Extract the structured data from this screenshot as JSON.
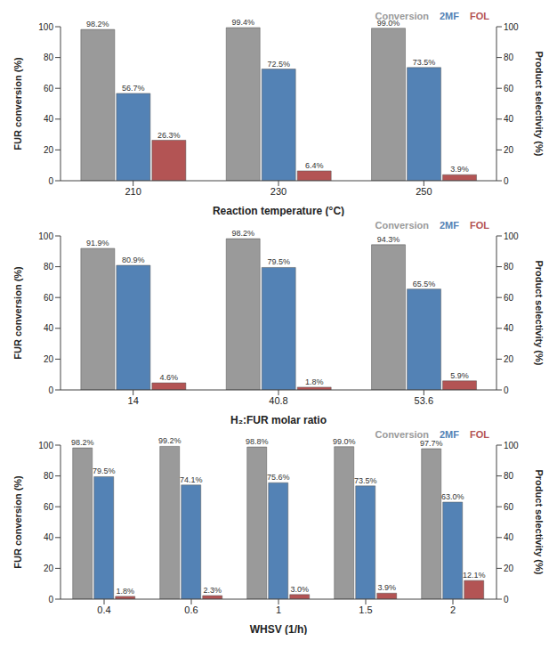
{
  "chart_data": [
    {
      "type": "bar",
      "xlabel": "Reaction temperature (°C)",
      "ylabel": "FUR conversion (%)",
      "y2label": "Product selectivity (%)",
      "categories": [
        "210",
        "230",
        "250"
      ],
      "series": [
        {
          "name": "Conversion",
          "color": "#9a9a9a",
          "values": [
            98.2,
            99.4,
            99.0
          ],
          "value_labels": [
            "98.2%",
            "99.4%",
            "99.0%"
          ]
        },
        {
          "name": "2MF",
          "color": "#5382b5",
          "axis": "y2",
          "values": [
            56.7,
            72.5,
            73.5
          ],
          "value_labels": [
            "56.7%",
            "72.5%",
            "73.5%"
          ]
        },
        {
          "name": "FOL",
          "color": "#b35454",
          "axis": "y2",
          "values": [
            26.3,
            6.4,
            3.9
          ],
          "value_labels": [
            "26.3%",
            "6.4%",
            "3.9%"
          ]
        }
      ],
      "ylim": [
        0,
        100
      ],
      "yticks": [
        0,
        20,
        40,
        60,
        80,
        100
      ],
      "y2lim": [
        0,
        100
      ],
      "y2ticks": [
        0,
        20,
        40,
        60,
        80,
        100
      ],
      "grid": false,
      "legend": "upper right",
      "data_labels": true
    },
    {
      "type": "bar",
      "xlabel": "H₂:FUR molar ratio",
      "ylabel": "FUR conversion (%)",
      "y2label": "Product selectivity (%)",
      "categories": [
        "14",
        "40.8",
        "53.6"
      ],
      "series": [
        {
          "name": "Conversion",
          "color": "#9a9a9a",
          "values": [
            91.9,
            98.2,
            94.3
          ],
          "value_labels": [
            "91.9%",
            "98.2%",
            "94.3%"
          ]
        },
        {
          "name": "2MF",
          "color": "#5382b5",
          "axis": "y2",
          "values": [
            80.9,
            79.5,
            65.5
          ],
          "value_labels": [
            "80.9%",
            "79.5%",
            "65.5%"
          ]
        },
        {
          "name": "FOL",
          "color": "#b35454",
          "axis": "y2",
          "values": [
            4.6,
            1.8,
            5.9
          ],
          "value_labels": [
            "4.6%",
            "1.8%",
            "5.9%"
          ]
        }
      ],
      "ylim": [
        0,
        100
      ],
      "yticks": [
        0,
        20,
        40,
        60,
        80,
        100
      ],
      "y2lim": [
        0,
        100
      ],
      "y2ticks": [
        0,
        20,
        40,
        60,
        80,
        100
      ],
      "grid": false,
      "legend": "upper right",
      "data_labels": true
    },
    {
      "type": "bar",
      "xlabel": "WHSV (1/h)",
      "ylabel": "FUR conversion (%)",
      "y2label": "Product selectivity (%)",
      "categories": [
        "0.4",
        "0.6",
        "1",
        "1.5",
        "2"
      ],
      "series": [
        {
          "name": "Conversion",
          "color": "#9a9a9a",
          "values": [
            98.2,
            99.2,
            98.8,
            99.0,
            97.7
          ],
          "value_labels": [
            "98.2%",
            "99.2%",
            "98.8%",
            "99.0%",
            "97.7%"
          ]
        },
        {
          "name": "2MF",
          "color": "#5382b5",
          "axis": "y2",
          "values": [
            79.5,
            74.1,
            75.6,
            73.5,
            63.0
          ],
          "value_labels": [
            "79.5%",
            "74.1%",
            "75.6%",
            "73.5%",
            "63.0%"
          ]
        },
        {
          "name": "FOL",
          "color": "#b35454",
          "axis": "y2",
          "values": [
            1.8,
            2.3,
            3.0,
            3.9,
            12.1
          ],
          "value_labels": [
            "1.8%",
            "2.3%",
            "3.0%",
            "3.9%",
            "12.1%"
          ]
        }
      ],
      "ylim": [
        0,
        100
      ],
      "yticks": [
        0,
        20,
        40,
        60,
        80,
        100
      ],
      "y2lim": [
        0,
        100
      ],
      "y2ticks": [
        0,
        20,
        40,
        60,
        80,
        100
      ],
      "grid": false,
      "legend": "upper right",
      "data_labels": true
    }
  ]
}
